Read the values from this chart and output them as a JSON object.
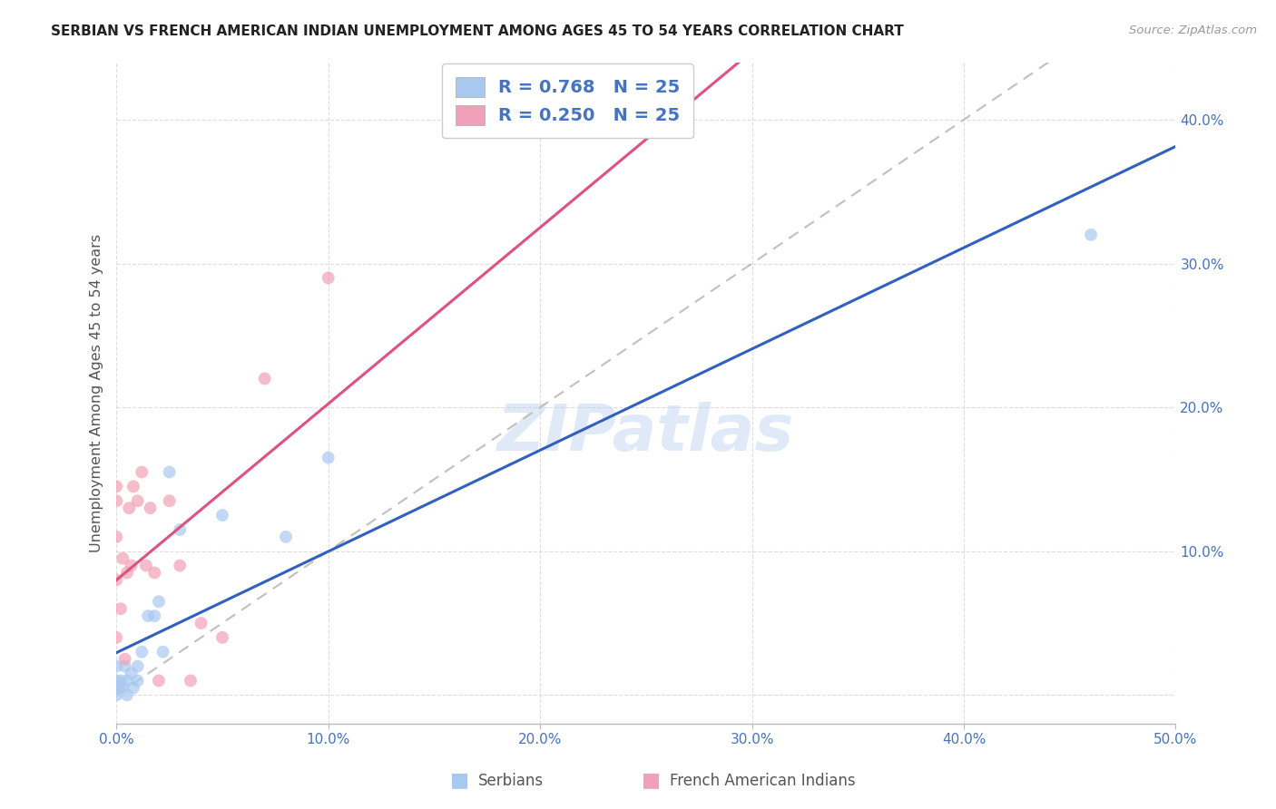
{
  "title": "SERBIAN VS FRENCH AMERICAN INDIAN UNEMPLOYMENT AMONG AGES 45 TO 54 YEARS CORRELATION CHART",
  "source": "Source: ZipAtlas.com",
  "ylabel": "Unemployment Among Ages 45 to 54 years",
  "xlim": [
    0,
    0.5
  ],
  "ylim": [
    -0.02,
    0.44
  ],
  "xticks": [
    0.0,
    0.1,
    0.2,
    0.3,
    0.4,
    0.5
  ],
  "yticks": [
    0.0,
    0.1,
    0.2,
    0.3,
    0.4
  ],
  "xtick_labels": [
    "0.0%",
    "10.0%",
    "20.0%",
    "30.0%",
    "40.0%",
    "50.0%"
  ],
  "ytick_labels": [
    "",
    "10.0%",
    "20.0%",
    "30.0%",
    "40.0%"
  ],
  "serbian_color": "#A8C8F0",
  "french_color": "#F0A0B8",
  "serbian_line_color": "#3060C0",
  "french_line_color": "#E05080",
  "diagonal_color": "#C0C0C0",
  "legend_text_color": "#4472C4",
  "R_serbian": 0.768,
  "N_serbian": 25,
  "R_french": 0.25,
  "N_french": 25,
  "serbian_x": [
    0.0,
    0.0,
    0.0,
    0.0,
    0.001,
    0.002,
    0.003,
    0.004,
    0.005,
    0.005,
    0.007,
    0.008,
    0.01,
    0.01,
    0.012,
    0.015,
    0.018,
    0.02,
    0.022,
    0.025,
    0.03,
    0.05,
    0.08,
    0.1,
    0.46
  ],
  "serbian_y": [
    0.0,
    0.005,
    0.01,
    0.02,
    0.005,
    0.01,
    0.005,
    0.02,
    0.0,
    0.01,
    0.015,
    0.005,
    0.01,
    0.02,
    0.03,
    0.055,
    0.055,
    0.065,
    0.03,
    0.155,
    0.115,
    0.125,
    0.11,
    0.165,
    0.32
  ],
  "french_x": [
    0.0,
    0.0,
    0.0,
    0.0,
    0.0,
    0.002,
    0.003,
    0.004,
    0.005,
    0.006,
    0.007,
    0.008,
    0.01,
    0.012,
    0.014,
    0.016,
    0.018,
    0.02,
    0.025,
    0.03,
    0.035,
    0.04,
    0.05,
    0.07,
    0.1
  ],
  "french_y": [
    0.04,
    0.08,
    0.11,
    0.135,
    0.145,
    0.06,
    0.095,
    0.025,
    0.085,
    0.13,
    0.09,
    0.145,
    0.135,
    0.155,
    0.09,
    0.13,
    0.085,
    0.01,
    0.135,
    0.09,
    0.01,
    0.05,
    0.04,
    0.22,
    0.29
  ],
  "watermark": "ZIPatlas",
  "background_color": "#FFFFFF",
  "grid_color": "#DDDDDD",
  "bottom_legend_serbian": "Serbians",
  "bottom_legend_french": "French American Indians"
}
